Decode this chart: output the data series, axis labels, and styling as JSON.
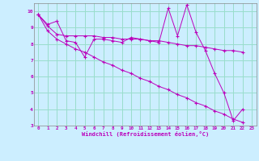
{
  "xlabel": "Windchill (Refroidissement éolien,°C)",
  "xlim": [
    -0.5,
    23.5
  ],
  "ylim": [
    3,
    10.5
  ],
  "yticks": [
    3,
    4,
    5,
    6,
    7,
    8,
    9,
    10
  ],
  "xticks": [
    0,
    1,
    2,
    3,
    4,
    5,
    6,
    7,
    8,
    9,
    10,
    11,
    12,
    13,
    14,
    15,
    16,
    17,
    18,
    19,
    20,
    21,
    22,
    23
  ],
  "bg_color": "#cceeff",
  "grid_color": "#99ddcc",
  "line_color": "#bb00bb",
  "series": [
    [
      9.8,
      9.2,
      9.4,
      8.2,
      8.1,
      7.2,
      8.3,
      8.3,
      8.2,
      8.1,
      8.4,
      8.3,
      8.2,
      8.1,
      10.2,
      8.5,
      10.4,
      8.7,
      7.6,
      6.2,
      5.0,
      3.3,
      4.0
    ],
    [
      9.8,
      9.1,
      8.6,
      8.5,
      8.5,
      8.5,
      8.5,
      8.4,
      8.4,
      8.3,
      8.3,
      8.3,
      8.2,
      8.2,
      8.1,
      8.0,
      7.9,
      7.9,
      7.8,
      7.7,
      7.6,
      7.6,
      7.5
    ],
    [
      9.8,
      8.8,
      8.3,
      8.0,
      7.7,
      7.5,
      7.2,
      6.9,
      6.7,
      6.4,
      6.2,
      5.9,
      5.7,
      5.4,
      5.2,
      4.9,
      4.7,
      4.4,
      4.2,
      3.9,
      3.7,
      3.4,
      3.2
    ]
  ],
  "series_x": [
    [
      0,
      1,
      2,
      3,
      4,
      5,
      6,
      7,
      8,
      9,
      10,
      11,
      12,
      13,
      14,
      15,
      16,
      17,
      18,
      19,
      20,
      21,
      22
    ],
    [
      0,
      1,
      2,
      3,
      4,
      5,
      6,
      7,
      8,
      9,
      10,
      11,
      12,
      13,
      14,
      15,
      16,
      17,
      18,
      19,
      20,
      21,
      22
    ],
    [
      0,
      1,
      2,
      3,
      4,
      5,
      6,
      7,
      8,
      9,
      10,
      11,
      12,
      13,
      14,
      15,
      16,
      17,
      18,
      19,
      20,
      21,
      22
    ]
  ]
}
